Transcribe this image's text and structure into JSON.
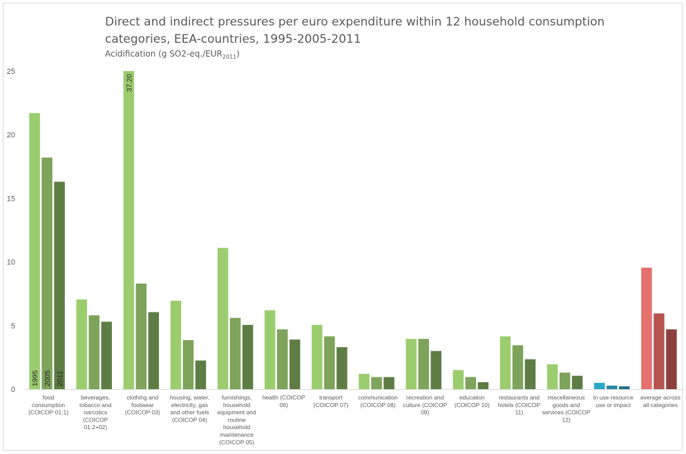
{
  "chart_data": {
    "type": "bar",
    "title_lines": [
      "Direct and indirect pressures per euro expenditure within 12 household consumption",
      "categories, EEA-countries, 1995-2005-2011"
    ],
    "subtitle_prefix": "Acidification (g SO2-eq./EUR",
    "subtitle_sub": "2011",
    "subtitle_suffix": ")",
    "ylim": [
      0,
      25
    ],
    "yticks": [
      "0",
      "5",
      "10",
      "15",
      "20",
      "25"
    ],
    "grid": false,
    "legend": "none",
    "series_years": [
      "1995",
      "2005",
      "2011"
    ],
    "categories": [
      {
        "label": [
          "food",
          "consumption",
          "(COICOP 01.1)"
        ],
        "values": [
          21.7,
          18.2,
          16.3
        ],
        "colors": [
          "#9bcd6e",
          "#7ea35a",
          "#5d7d44"
        ]
      },
      {
        "label": [
          "beverages,",
          "tobacco and",
          "narcotics",
          "(COICOP",
          "01.2+02)"
        ],
        "values": [
          7.05,
          5.8,
          5.3
        ],
        "colors": [
          "#9bcd6e",
          "#7ea35a",
          "#5d7d44"
        ]
      },
      {
        "label": [
          "clothing and",
          "footwear",
          "(COICOP 03)"
        ],
        "values": [
          37.2,
          8.3,
          6.05
        ],
        "colors": [
          "#9bcd6e",
          "#7ea35a",
          "#5d7d44"
        ]
      },
      {
        "label": [
          "housing, water,",
          "electricity, gas",
          "and other fuels",
          "(COICOP 04)"
        ],
        "values": [
          6.95,
          3.85,
          2.25
        ],
        "colors": [
          "#9bcd6e",
          "#7ea35a",
          "#5d7d44"
        ]
      },
      {
        "label": [
          "furnishings,",
          "household",
          "equipment and",
          "routine",
          "household",
          "maintenance",
          "(COICOP 05)"
        ],
        "values": [
          11.1,
          5.6,
          5.05
        ],
        "colors": [
          "#9bcd6e",
          "#7ea35a",
          "#5d7d44"
        ]
      },
      {
        "label": [
          "health (COICOP",
          "06)"
        ],
        "values": [
          6.2,
          4.7,
          3.9
        ],
        "colors": [
          "#9bcd6e",
          "#7ea35a",
          "#5d7d44"
        ]
      },
      {
        "label": [
          "transport",
          "(COICOP 07)"
        ],
        "values": [
          5.05,
          4.15,
          3.3
        ],
        "colors": [
          "#9bcd6e",
          "#7ea35a",
          "#5d7d44"
        ]
      },
      {
        "label": [
          "communication",
          "(COICOP 08)"
        ],
        "values": [
          1.2,
          0.95,
          0.95
        ],
        "colors": [
          "#9bcd6e",
          "#7ea35a",
          "#5d7d44"
        ]
      },
      {
        "label": [
          "recreation and",
          "culture (COICOP",
          "09)"
        ],
        "values": [
          3.95,
          3.95,
          3.0
        ],
        "colors": [
          "#9bcd6e",
          "#7ea35a",
          "#5d7d44"
        ]
      },
      {
        "label": [
          "education",
          "(COICOP 10)"
        ],
        "values": [
          1.5,
          0.95,
          0.55
        ],
        "colors": [
          "#9bcd6e",
          "#7ea35a",
          "#5d7d44"
        ]
      },
      {
        "label": [
          "restaurants and",
          "hotels (COICOP",
          "11)"
        ],
        "values": [
          4.15,
          3.45,
          2.35
        ],
        "colors": [
          "#9bcd6e",
          "#7ea35a",
          "#5d7d44"
        ]
      },
      {
        "label": [
          "miscellaneous",
          "goods and",
          "services (COICOP",
          "12)"
        ],
        "values": [
          1.95,
          1.3,
          1.05
        ],
        "colors": [
          "#9bcd6e",
          "#7ea35a",
          "#5d7d44"
        ]
      },
      {
        "label": [
          "in use resource",
          "use or impact"
        ],
        "values": [
          0.5,
          0.28,
          0.22
        ],
        "colors": [
          "#2aa9c4",
          "#2c8aa6",
          "#256f86"
        ]
      },
      {
        "label": [
          "average across",
          "all categories"
        ],
        "values": [
          9.55,
          5.95,
          4.7
        ],
        "colors": [
          "#e5716f",
          "#b85350",
          "#8c413d"
        ]
      }
    ],
    "annotations": [
      {
        "category_index": 2,
        "series_index": 0,
        "text": "37.20"
      }
    ]
  }
}
